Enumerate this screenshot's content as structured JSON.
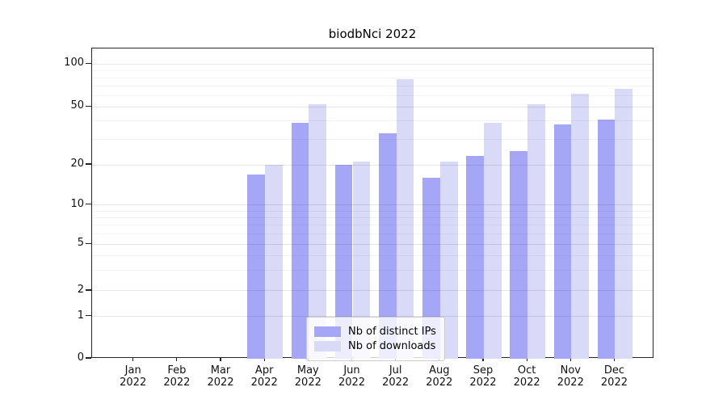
{
  "chart_data": {
    "type": "bar",
    "title": "biodbNci 2022",
    "x_categories": [
      {
        "month": "Jan",
        "year": "2022"
      },
      {
        "month": "Feb",
        "year": "2022"
      },
      {
        "month": "Mar",
        "year": "2022"
      },
      {
        "month": "Apr",
        "year": "2022"
      },
      {
        "month": "May",
        "year": "2022"
      },
      {
        "month": "Jun",
        "year": "2022"
      },
      {
        "month": "Jul",
        "year": "2022"
      },
      {
        "month": "Aug",
        "year": "2022"
      },
      {
        "month": "Sep",
        "year": "2022"
      },
      {
        "month": "Oct",
        "year": "2022"
      },
      {
        "month": "Nov",
        "year": "2022"
      },
      {
        "month": "Dec",
        "year": "2022"
      }
    ],
    "series": [
      {
        "name": "Nb of distinct IPs",
        "color": "#a6a6f7",
        "values": [
          0,
          0,
          0,
          17,
          39,
          20,
          33,
          16,
          23,
          25,
          38,
          41
        ]
      },
      {
        "name": "Nb of downloads",
        "color": "#d9d9f8",
        "values": [
          0,
          0,
          0,
          20,
          52,
          21,
          78,
          21,
          39,
          52,
          62,
          67
        ]
      }
    ],
    "y_axis": {
      "scale": "symlog",
      "ticks": [
        0,
        1,
        2,
        5,
        10,
        20,
        50,
        100
      ],
      "tick_fractions_from_bottom": [
        0,
        0.1362,
        0.2188,
        0.3687,
        0.4956,
        0.625,
        0.8114,
        0.9495
      ],
      "minor_gridlines": [
        3,
        4,
        6,
        7,
        8,
        9,
        30,
        40,
        60,
        70,
        80,
        90
      ]
    },
    "legend": {
      "position": "lower center"
    },
    "grid": true
  }
}
